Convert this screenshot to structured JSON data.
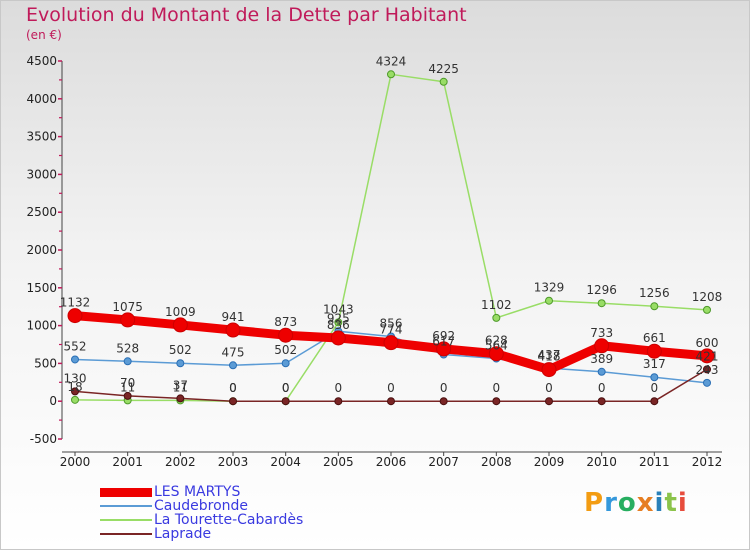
{
  "header": {
    "title": "Evolution du Montant de la Dette par Habitant",
    "unit": "(en €)"
  },
  "logo": {
    "text": "Proxiti"
  },
  "chart_data": {
    "type": "line",
    "title": "Evolution du Montant de la Dette par Habitant",
    "ylabel": "(en €)",
    "x": [
      2000,
      2001,
      2002,
      2003,
      2004,
      2005,
      2006,
      2007,
      2008,
      2009,
      2010,
      2011,
      2012
    ],
    "ylim": [
      -500,
      4500
    ],
    "yticks": [
      -500,
      0,
      500,
      1000,
      1500,
      2000,
      2500,
      3000,
      3500,
      4000,
      4500
    ],
    "grid": false,
    "legend": "bottom-left",
    "series": [
      {
        "name": "LES MARTYS",
        "color": "#ee0000",
        "values": [
          1132,
          1075,
          1009,
          941,
          873,
          836,
          774,
          692,
          628,
          418,
          733,
          661,
          600
        ],
        "labels": [
          "1132",
          "1075",
          "1009",
          "941",
          "873",
          "836",
          "774",
          "692",
          "628",
          "418",
          "733",
          "661",
          "600"
        ]
      },
      {
        "name": "Caudebronde",
        "color": "#5b9bd5",
        "values": [
          552,
          528,
          502,
          475,
          502,
          925,
          856,
          617,
          564,
          437,
          389,
          317,
          243
        ],
        "labels": [
          "552",
          "528",
          "502",
          "475",
          "502",
          "925",
          "856",
          "617",
          "564",
          "437",
          "389",
          "317",
          "243"
        ]
      },
      {
        "name": "La Tourette-Cabardès",
        "color": "#99dd66",
        "values": [
          18,
          11,
          11,
          0,
          0,
          1043,
          4324,
          4225,
          1102,
          1329,
          1296,
          1256,
          1208
        ],
        "labels": [
          "18",
          "11",
          "11",
          "0",
          "0",
          "1043",
          "4324",
          "4225",
          "1102",
          "1329",
          "1296",
          "1256",
          "1208"
        ]
      },
      {
        "name": "Laprade",
        "color": "#7a2525",
        "values": [
          130,
          70,
          37,
          0,
          0,
          0,
          0,
          0,
          0,
          0,
          0,
          0,
          421
        ],
        "labels": [
          "130",
          "70",
          "37",
          "0",
          "0",
          "0",
          "0",
          "0",
          "0",
          "0",
          "0",
          "0",
          "421"
        ]
      }
    ]
  }
}
